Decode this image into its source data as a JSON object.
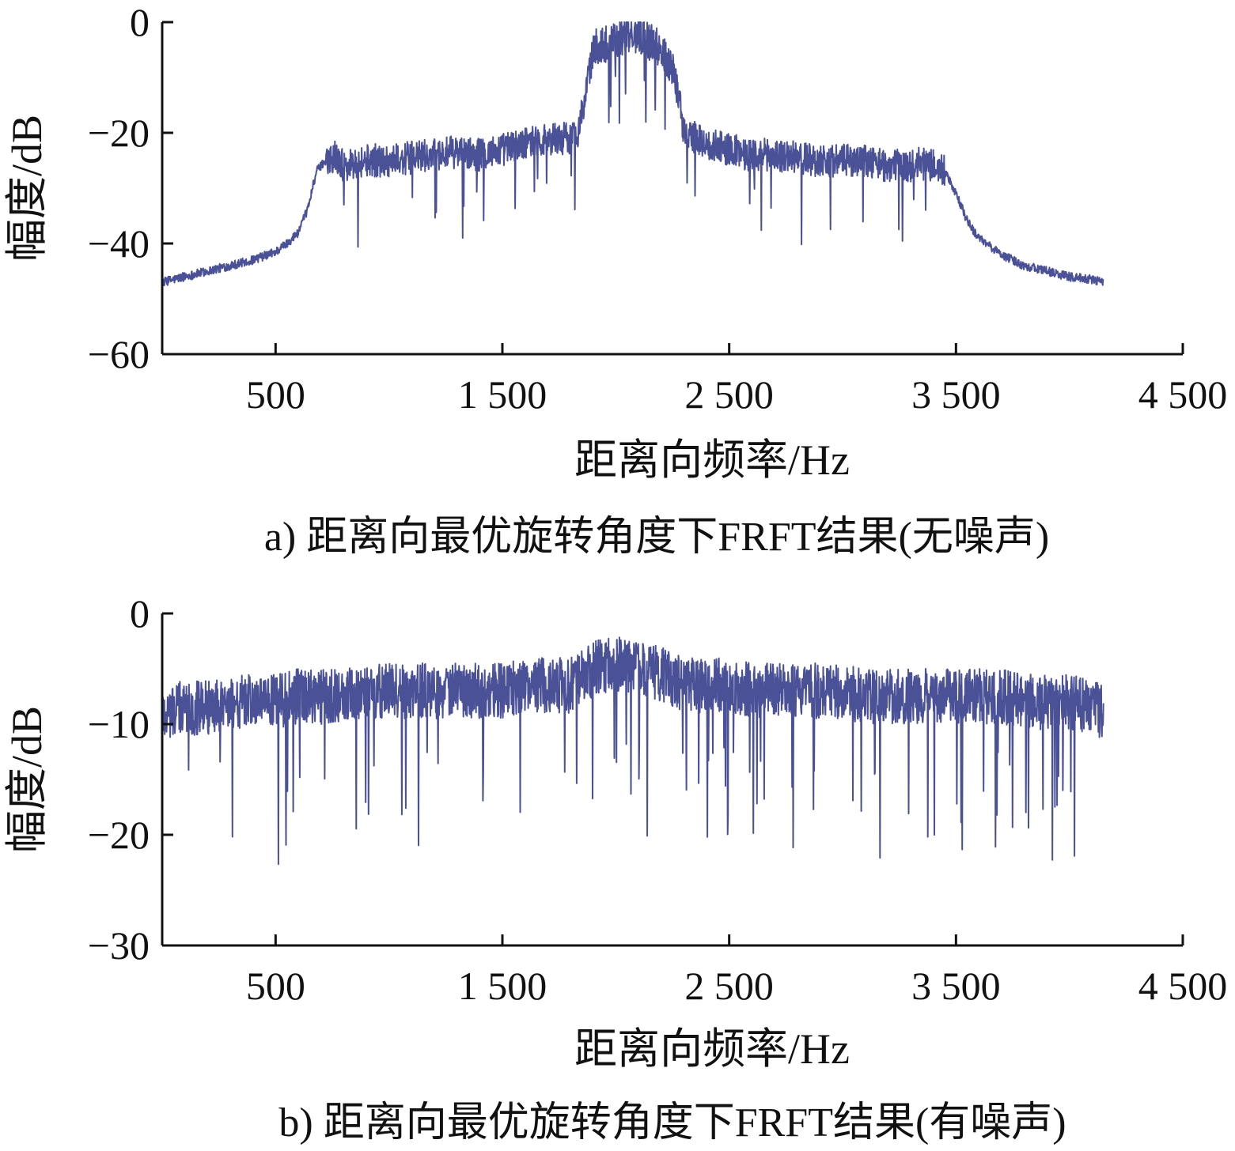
{
  "chart_data": [
    {
      "id": "a",
      "type": "line",
      "caption": "a) 距离向最优旋转角度下FRFT结果(无噪声)",
      "xlabel": "距离向频率/Hz",
      "ylabel": "幅度/dB",
      "xlim": [
        0,
        4500
      ],
      "ylim": [
        -60,
        0
      ],
      "xticks": [
        500,
        1500,
        2500,
        3500,
        4500
      ],
      "xtick_labels": [
        "500",
        "1 500",
        "2 500",
        "3 500",
        "4 500"
      ],
      "yticks": [
        0,
        -20,
        -40,
        -60
      ],
      "ytick_labels": [
        "0",
        "−20",
        "−40",
        "−60"
      ],
      "grid": false,
      "line_color": "#4a5196",
      "series": [
        {
          "x": [
            0,
            100,
            200,
            300,
            400,
            500,
            550,
            600,
            640,
            680,
            720,
            760,
            800,
            900,
            1000,
            1100,
            1200,
            1300,
            1400,
            1500,
            1600,
            1700,
            1800,
            1830,
            1860,
            1900,
            2000,
            2100,
            2200,
            2250,
            2280,
            2300,
            2400,
            2500,
            2600,
            2700,
            2800,
            2900,
            3000,
            3100,
            3200,
            3300,
            3350,
            3400,
            3450,
            3500,
            3550,
            3600,
            3700,
            3800,
            3900,
            4000,
            4100,
            4150
          ],
          "y": [
            -47,
            -46,
            -45,
            -44,
            -43,
            -41.5,
            -40,
            -38,
            -34,
            -27,
            -25,
            -24,
            -26,
            -25,
            -25,
            -24.5,
            -24,
            -23.5,
            -24,
            -23,
            -22,
            -21,
            -21,
            -20,
            -15,
            -5,
            -3,
            -2,
            -5,
            -8,
            -14,
            -20,
            -22,
            -23,
            -24,
            -24,
            -24.5,
            -25,
            -25,
            -25,
            -26,
            -26,
            -25.5,
            -26,
            -27,
            -31,
            -36,
            -39,
            -42,
            -44,
            -45,
            -46,
            -46.5,
            -47
          ]
        }
      ]
    },
    {
      "id": "b",
      "type": "line",
      "caption": "b) 距离向最优旋转角度下FRFT结果(有噪声)",
      "xlabel": "距离向频率/Hz",
      "ylabel": "幅度/dB",
      "xlim": [
        0,
        4500
      ],
      "ylim": [
        -30,
        0
      ],
      "xticks": [
        500,
        1500,
        2500,
        3500,
        4500
      ],
      "xtick_labels": [
        "500",
        "1 500",
        "2 500",
        "3 500",
        "4 500"
      ],
      "yticks": [
        0,
        -10,
        -20,
        -30
      ],
      "ytick_labels": [
        "0",
        "−10",
        "−20",
        "−30"
      ],
      "grid": false,
      "line_color": "#4a5196",
      "series": [
        {
          "x": [
            0,
            100,
            200,
            300,
            400,
            500,
            600,
            700,
            800,
            900,
            1000,
            1100,
            1200,
            1300,
            1400,
            1500,
            1600,
            1700,
            1800,
            1900,
            2000,
            2100,
            2200,
            2300,
            2400,
            2500,
            2600,
            2700,
            2800,
            2900,
            3000,
            3100,
            3200,
            3300,
            3400,
            3500,
            3600,
            3700,
            3800,
            3900,
            4000,
            4100,
            4150
          ],
          "y": [
            -9,
            -8.5,
            -8.5,
            -8,
            -8,
            -8,
            -7.5,
            -7.5,
            -7.5,
            -7,
            -7,
            -7,
            -7,
            -7,
            -7,
            -7,
            -6.5,
            -6.5,
            -6.5,
            -5,
            -4.5,
            -5,
            -5.5,
            -6.5,
            -6.5,
            -6.5,
            -7,
            -7,
            -7,
            -7,
            -7,
            -7.5,
            -7.5,
            -7.5,
            -7.5,
            -7.5,
            -7.5,
            -7.5,
            -8,
            -8,
            -8,
            -8.5,
            -9
          ]
        }
      ]
    }
  ]
}
